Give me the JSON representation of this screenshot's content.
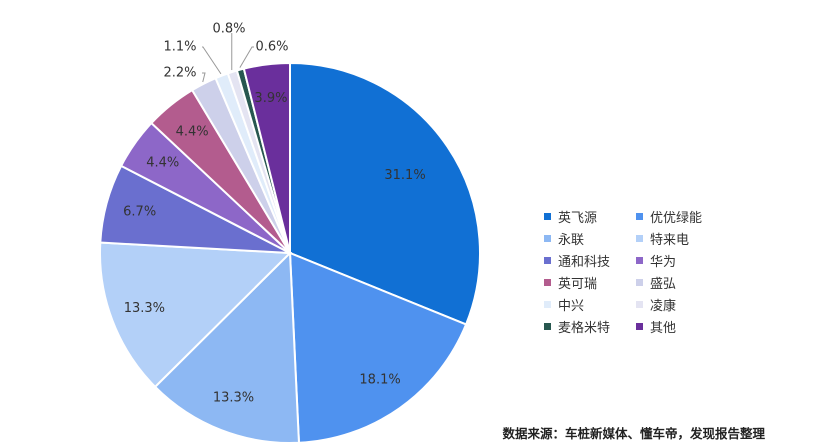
{
  "chart_data": {
    "type": "pie",
    "slices": [
      {
        "name": "英飞源",
        "value": 31.1,
        "label": "31.1%",
        "color": "#1170d4"
      },
      {
        "name": "优优绿能",
        "value": 18.1,
        "label": "18.1%",
        "color": "#4f92ef"
      },
      {
        "name": "永联",
        "value": 13.3,
        "label": "13.3%",
        "color": "#8db8f3"
      },
      {
        "name": "特来电",
        "value": 13.3,
        "label": "13.3%",
        "color": "#b3d0f8"
      },
      {
        "name": "通和科技",
        "value": 6.7,
        "label": "6.7%",
        "color": "#6a6fcf"
      },
      {
        "name": "华为",
        "value": 4.4,
        "label": "4.4%",
        "color": "#8d67c8"
      },
      {
        "name": "英可瑞",
        "value": 4.4,
        "label": "4.4%",
        "color": "#b35c8e"
      },
      {
        "name": "盛弘",
        "value": 2.2,
        "label": "2.2%",
        "color": "#cdd0ea"
      },
      {
        "name": "中兴",
        "value": 1.1,
        "label": "1.1%",
        "color": "#e0ecfa"
      },
      {
        "name": "凌康",
        "value": 0.8,
        "label": "0.8%",
        "color": "#e4e4f2"
      },
      {
        "name": "麦格米特",
        "value": 0.6,
        "label": "0.6%",
        "color": "#27574f"
      },
      {
        "name": "其他",
        "value": 3.9,
        "label": "3.9%",
        "color": "#6a2f9c"
      }
    ],
    "legend_placement": "right"
  },
  "source_note": "数据来源：车桩新媒体、懂车帝，发现报告整理"
}
